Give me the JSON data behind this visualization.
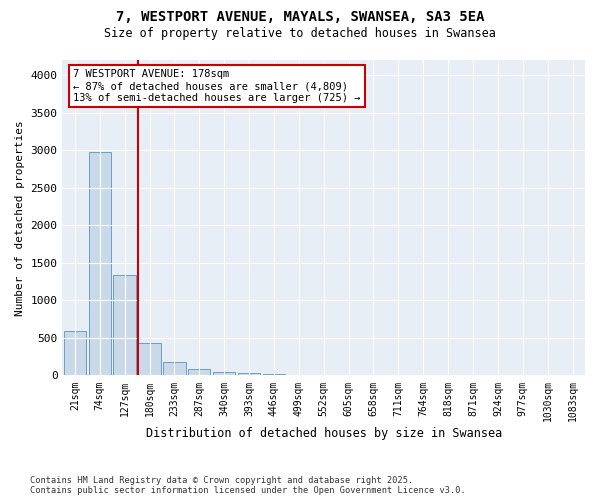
{
  "title_line1": "7, WESTPORT AVENUE, MAYALS, SWANSEA, SA3 5EA",
  "title_line2": "Size of property relative to detached houses in Swansea",
  "xlabel": "Distribution of detached houses by size in Swansea",
  "ylabel": "Number of detached properties",
  "categories": [
    "21sqm",
    "74sqm",
    "127sqm",
    "180sqm",
    "233sqm",
    "287sqm",
    "340sqm",
    "393sqm",
    "446sqm",
    "499sqm",
    "552sqm",
    "605sqm",
    "658sqm",
    "711sqm",
    "764sqm",
    "818sqm",
    "871sqm",
    "924sqm",
    "977sqm",
    "1030sqm",
    "1083sqm"
  ],
  "values": [
    590,
    2970,
    1340,
    430,
    175,
    85,
    50,
    35,
    25,
    0,
    0,
    0,
    0,
    0,
    0,
    0,
    0,
    0,
    0,
    0,
    0
  ],
  "bar_color": "#c9d9ea",
  "bar_edge_color": "#6a9fc0",
  "annotation_box_text": "7 WESTPORT AVENUE: 178sqm\n← 87% of detached houses are smaller (4,809)\n13% of semi-detached houses are larger (725) →",
  "annotation_box_color": "#ffffff",
  "annotation_box_edge_color": "#cc0000",
  "vline_color": "#cc0000",
  "vline_x_index": 3,
  "ylim": [
    0,
    4200
  ],
  "yticks": [
    0,
    500,
    1000,
    1500,
    2000,
    2500,
    3000,
    3500,
    4000
  ],
  "fig_bg_color": "#ffffff",
  "plot_bg_color": "#e8eef5",
  "grid_color": "#ffffff",
  "footer_line1": "Contains HM Land Registry data © Crown copyright and database right 2025.",
  "footer_line2": "Contains public sector information licensed under the Open Government Licence v3.0."
}
